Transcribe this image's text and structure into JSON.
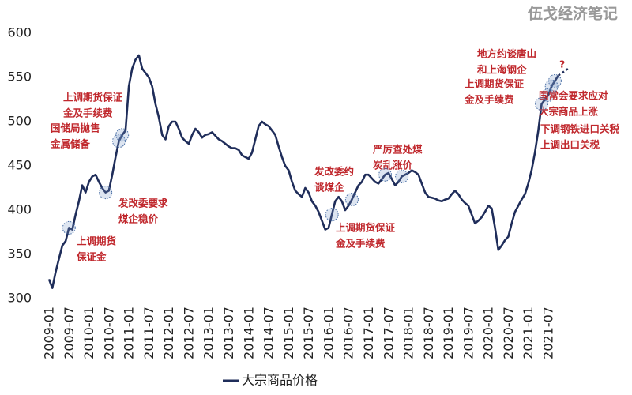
{
  "chart_data": {
    "type": "line",
    "watermark": "伍戈经济笔记",
    "categories": [
      "2009-01",
      null,
      null,
      null,
      null,
      null,
      "2009-07",
      null,
      null,
      null,
      null,
      null,
      "2010-01",
      null,
      null,
      null,
      null,
      null,
      "2010-07",
      null,
      null,
      null,
      null,
      null,
      "2011-01",
      null,
      null,
      null,
      null,
      null,
      "2011-07",
      null,
      null,
      null,
      null,
      null,
      "2012-01",
      null,
      null,
      null,
      null,
      null,
      "2012-07",
      null,
      null,
      null,
      null,
      null,
      "2013-01",
      null,
      null,
      null,
      null,
      null,
      "2013-07",
      null,
      null,
      null,
      null,
      null,
      "2014-01",
      null,
      null,
      null,
      null,
      null,
      "2014-07",
      null,
      null,
      null,
      null,
      null,
      "2015-01",
      null,
      null,
      null,
      null,
      null,
      "2015-07",
      null,
      null,
      null,
      null,
      null,
      "2016-01",
      null,
      null,
      null,
      null,
      null,
      "2016-07",
      null,
      null,
      null,
      null,
      null,
      "2017-01",
      null,
      null,
      null,
      null,
      null,
      "2017-07",
      null,
      null,
      null,
      null,
      null,
      "2018-01",
      null,
      null,
      null,
      null,
      null,
      "2018-07",
      null,
      null,
      null,
      null,
      null,
      "2019-01",
      null,
      null,
      null,
      null,
      null,
      "2019-07",
      null,
      null,
      null,
      null,
      null,
      "2020-01",
      null,
      null,
      null,
      null,
      null,
      "2020-07",
      null,
      null,
      null,
      null,
      null,
      "2021-01",
      null,
      null,
      null,
      null,
      null,
      "2021-07",
      null,
      null,
      null
    ],
    "series": [
      {
        "name": "大宗商品价格",
        "color": "#1f2d5a",
        "values": [
          322,
          312,
          330,
          345,
          360,
          365,
          380,
          378,
          395,
          410,
          428,
          420,
          432,
          438,
          440,
          432,
          425,
          420,
          422,
          440,
          460,
          478,
          485,
          490,
          540,
          560,
          570,
          575,
          560,
          555,
          550,
          540,
          520,
          505,
          485,
          480,
          495,
          500,
          500,
          492,
          482,
          478,
          475,
          485,
          492,
          488,
          482,
          485,
          486,
          488,
          484,
          480,
          478,
          475,
          472,
          470,
          470,
          468,
          462,
          460,
          458,
          465,
          480,
          495,
          500,
          497,
          495,
          490,
          485,
          472,
          460,
          450,
          445,
          432,
          422,
          418,
          415,
          425,
          420,
          410,
          405,
          398,
          388,
          378,
          380,
          395,
          410,
          415,
          410,
          400,
          405,
          412,
          420,
          428,
          432,
          440,
          440,
          436,
          432,
          430,
          435,
          440,
          442,
          435,
          428,
          432,
          438,
          440,
          442,
          445,
          443,
          440,
          430,
          420,
          415,
          414,
          413,
          411,
          410,
          412,
          413,
          418,
          422,
          418,
          412,
          408,
          405,
          395,
          385,
          388,
          392,
          398,
          405,
          402,
          380,
          355,
          360,
          366,
          370,
          385,
          398,
          405,
          412,
          418,
          430,
          445,
          465,
          490,
          520,
          525,
          530,
          540,
          546,
          552
        ]
      }
    ],
    "ylim": [
      300,
      600
    ],
    "yticks": [
      300,
      350,
      400,
      450,
      500,
      550,
      600
    ],
    "annotations": [
      {
        "lines": [
          "上调期货",
          "保证金"
        ]
      },
      {
        "lines": [
          "发改委要求",
          "煤企稳价"
        ]
      },
      {
        "lines": [
          "国储局抛售",
          "金属储备"
        ]
      },
      {
        "lines": [
          "上调期货保证",
          "金及手续费"
        ]
      },
      {
        "lines": [
          "发改委约",
          "谈煤企"
        ]
      },
      {
        "lines": [
          "上调期货保证",
          "金及手续费"
        ]
      },
      {
        "lines": [
          "严厉查处煤",
          "炭乱涨价"
        ]
      },
      {
        "lines": [
          "地方约谈唐山",
          "和上海钢企"
        ]
      },
      {
        "lines": [
          "上调期货保证",
          "金及手续费"
        ]
      },
      {
        "lines": [
          "国常会要求应对",
          "大宗商品上涨"
        ]
      },
      {
        "lines": [
          "下调钢铁进口关税",
          "上调出口关税"
        ]
      },
      {
        "lines": [
          "?"
        ]
      }
    ],
    "annotation_color": "#c0282d"
  }
}
